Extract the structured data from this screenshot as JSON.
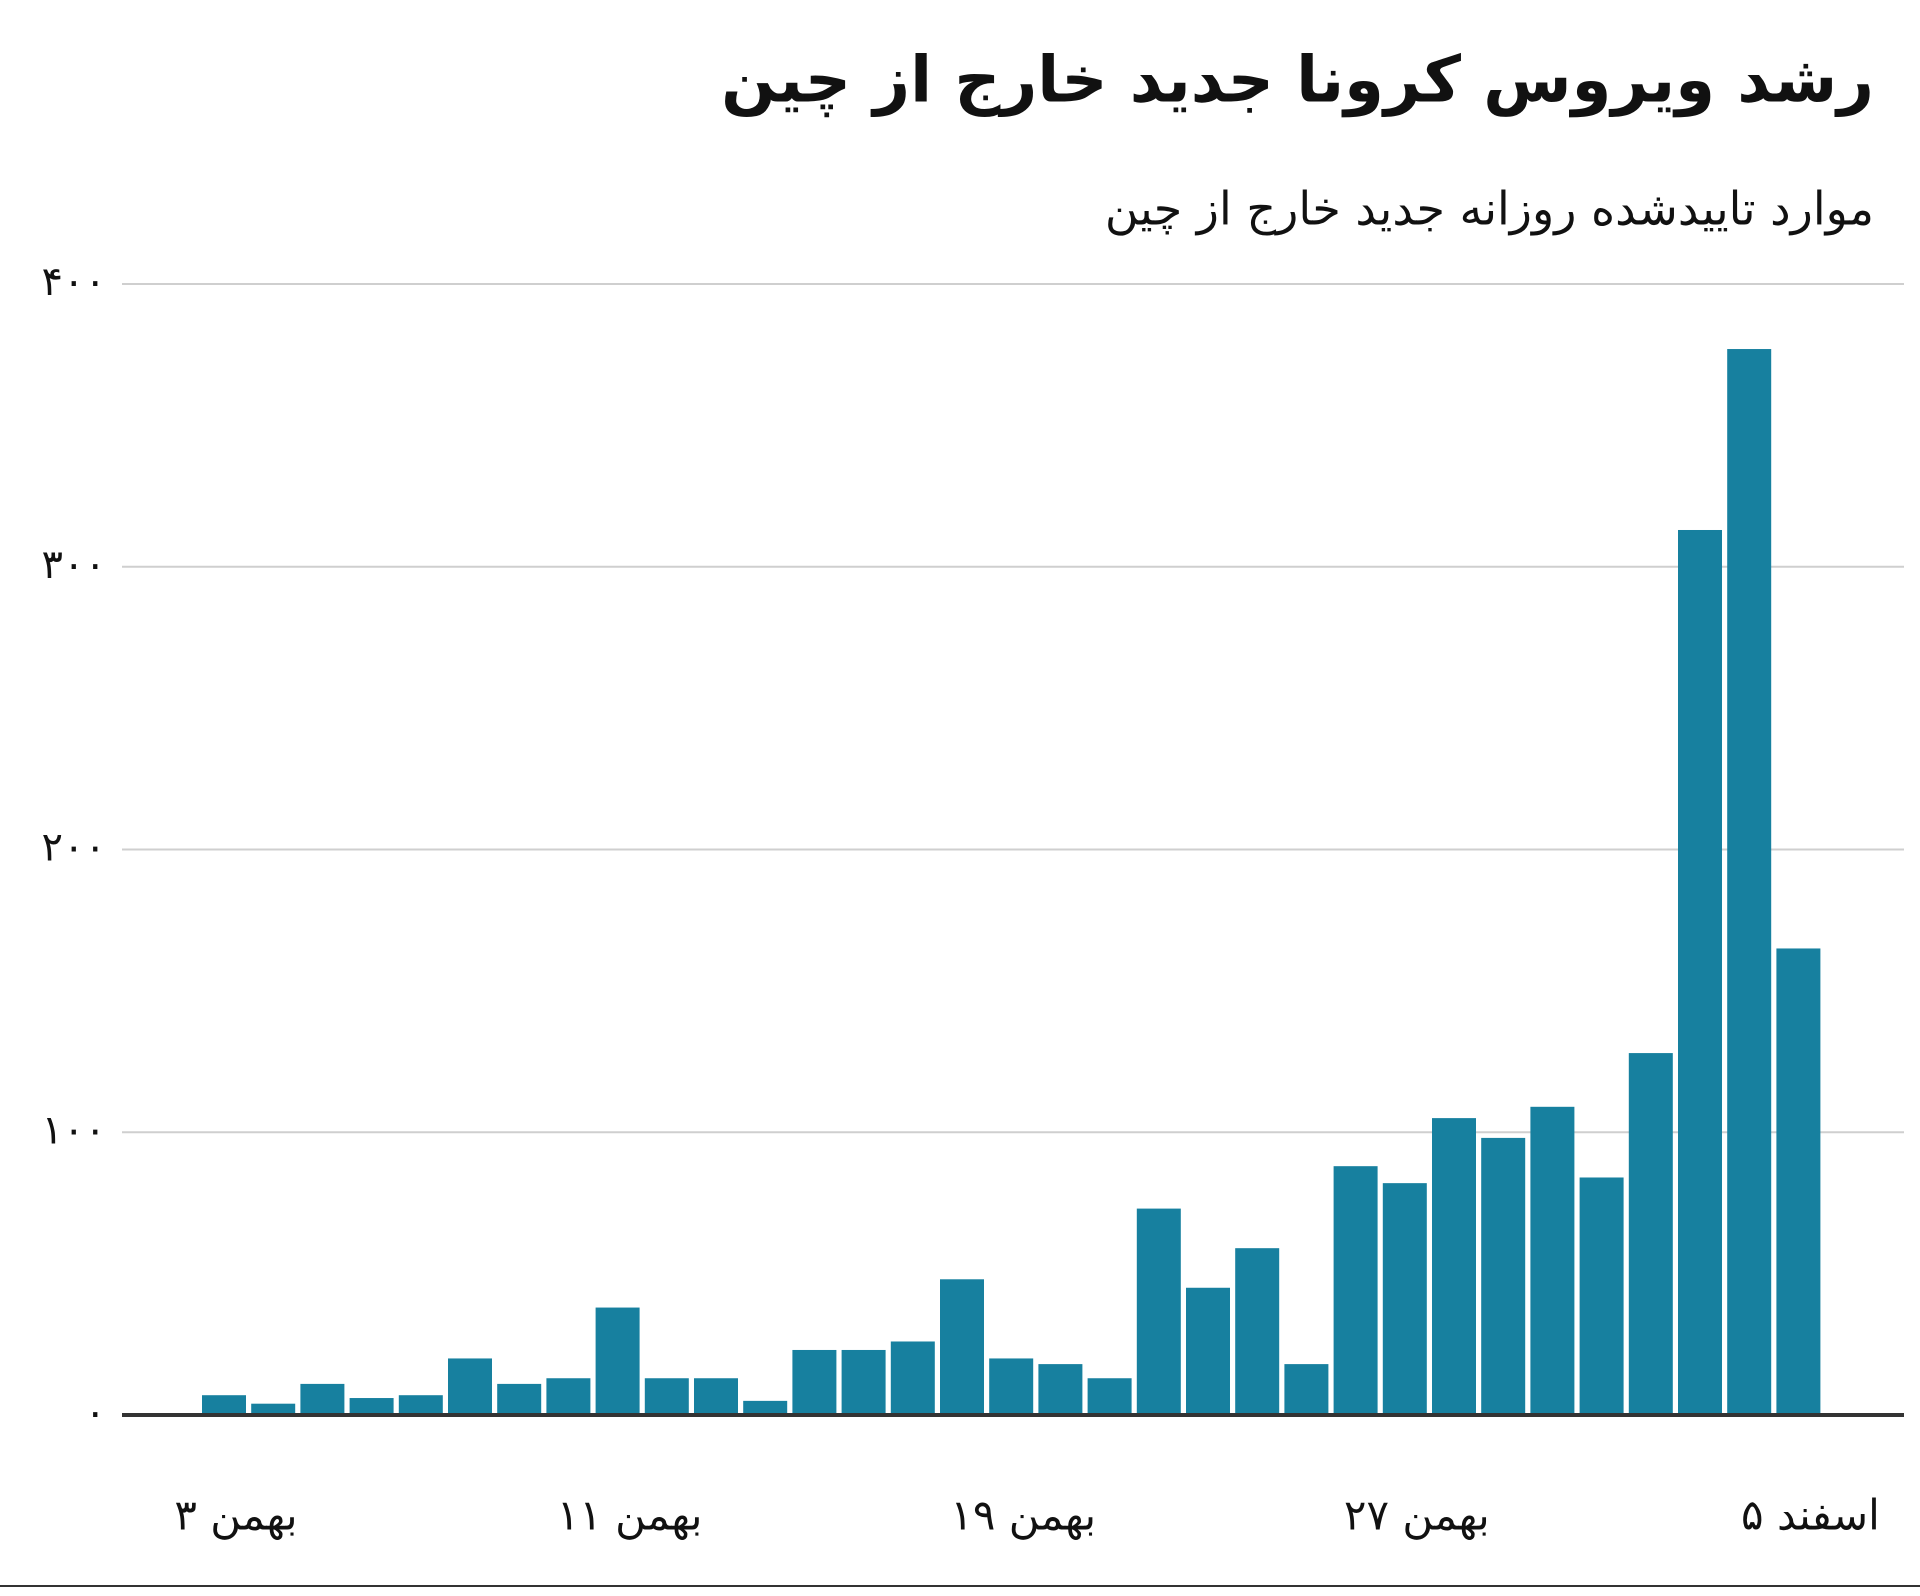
{
  "chart_data": {
    "type": "bar",
    "title": "رشد ویروس کرونا جدید خارج از چین",
    "subtitle": "موارد تاییدشده روزانه جدید خارج از چین",
    "categories": [
      "۳ بهمن",
      null,
      null,
      null,
      null,
      null,
      null,
      null,
      "۱۱ بهمن",
      null,
      null,
      null,
      null,
      null,
      null,
      null,
      "۱۹ بهمن",
      null,
      null,
      null,
      null,
      null,
      null,
      null,
      "۲۷ بهمن",
      null,
      null,
      null,
      null,
      null,
      null,
      null,
      "۵ اسفند"
    ],
    "values": [
      7,
      4,
      11,
      6,
      7,
      20,
      11,
      13,
      38,
      13,
      13,
      5,
      23,
      23,
      26,
      48,
      20,
      18,
      13,
      73,
      45,
      59,
      18,
      88,
      82,
      105,
      98,
      109,
      84,
      128,
      313,
      377,
      165
    ],
    "color": "#17809f",
    "ylim": [
      0,
      400
    ],
    "yticks": [
      {
        "value": 0,
        "label": "۰"
      },
      {
        "value": 100,
        "label": "۱۰۰"
      },
      {
        "value": 200,
        "label": "۲۰۰"
      },
      {
        "value": 300,
        "label": "۳۰۰"
      },
      {
        "value": 400,
        "label": "۴۰۰"
      }
    ],
    "grid": true
  }
}
